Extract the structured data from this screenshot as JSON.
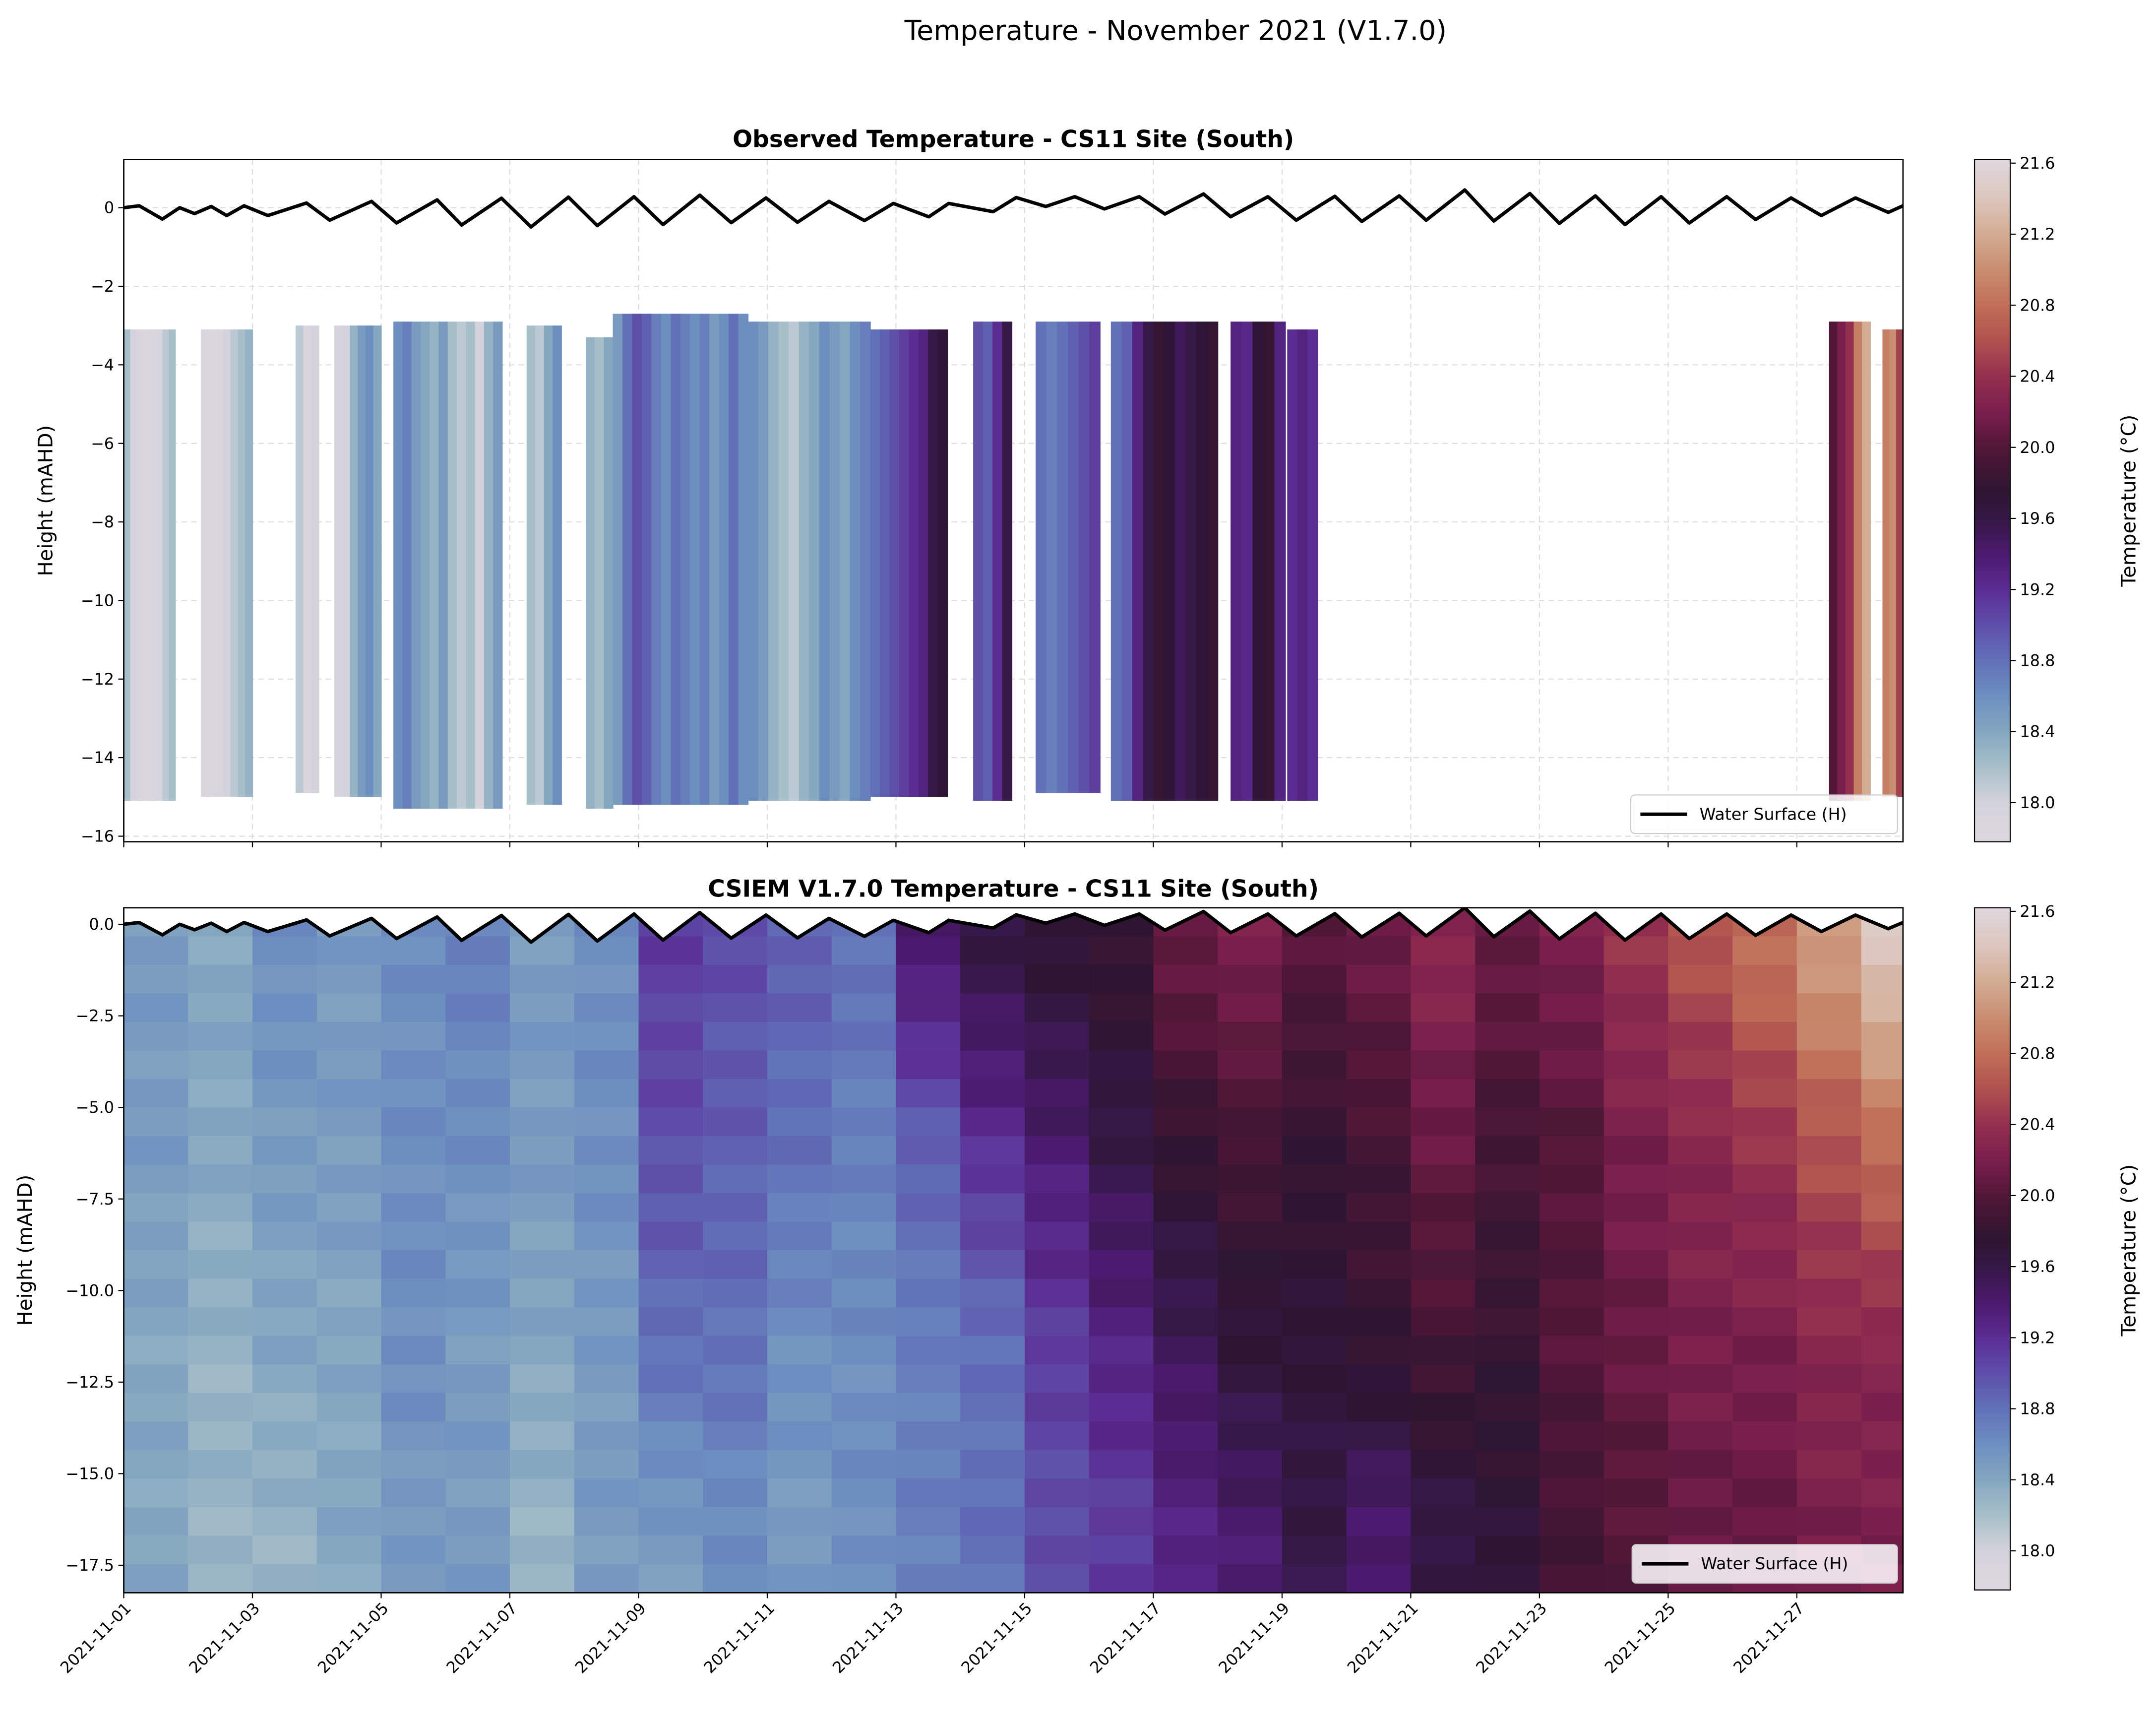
{
  "figure_title": "Temperature - November 2021 (V1.7.0)",
  "chart_data": [
    {
      "type": "heatmap",
      "id": "observed",
      "title": "Observed Temperature - CS11 Site (South)",
      "xlabel": "",
      "ylabel": "Height (mAHD)",
      "xlim_days_from_start": [
        0,
        27.65
      ],
      "ylim": [
        -16.14,
        1.23
      ],
      "yticks": [
        0,
        -2,
        -4,
        -6,
        -8,
        -10,
        -12,
        -14,
        -16
      ],
      "ytick_labels": [
        "0",
        "−2",
        "−4",
        "−6",
        "−8",
        "−10",
        "−12",
        "−14",
        "−16"
      ],
      "grid": true,
      "legend": {
        "label": "Water Surface (H)",
        "placement": "lower-right"
      },
      "segments_note": "start_day, end_day, top_height, bottom_height, temperatures across the segment",
      "segments": [
        [
          0,
          0.8,
          -3.1,
          -15.1,
          [
            18.2,
            18.0,
            17.9,
            17.85,
            17.9,
            17.95,
            18.1,
            18.2
          ]
        ],
        [
          1.2,
          2.0,
          -3.1,
          -15.0,
          [
            17.9,
            17.85,
            17.9,
            18.0,
            18.1,
            18.2,
            18.3
          ]
        ],
        [
          2.67,
          3.03,
          -3.0,
          -14.9,
          [
            18.1,
            17.9,
            18.0
          ]
        ],
        [
          3.27,
          4.0,
          -3.0,
          -15.0,
          [
            17.95,
            18.0,
            18.3,
            18.5,
            18.6,
            18.4
          ]
        ],
        [
          4.19,
          5.88,
          -2.9,
          -15.3,
          [
            18.6,
            18.7,
            18.5,
            18.4,
            18.3,
            18.5,
            18.2,
            18.1,
            18.2,
            18.0,
            18.3,
            18.5
          ]
        ],
        [
          6.26,
          6.8,
          -3.0,
          -15.2,
          [
            18.2,
            18.1,
            18.4,
            18.6
          ]
        ],
        [
          7.18,
          7.6,
          -3.3,
          -15.3,
          [
            18.3,
            18.2,
            18.4
          ]
        ],
        [
          7.6,
          9.7,
          -2.7,
          -15.2,
          [
            18.5,
            18.8,
            19.0,
            18.9,
            18.7,
            18.6,
            18.8,
            18.7,
            18.6,
            18.7,
            18.5,
            18.6,
            18.8,
            18.6
          ]
        ],
        [
          9.7,
          11.6,
          -2.9,
          -15.1,
          [
            18.6,
            18.5,
            18.3,
            18.2,
            18.1,
            18.3,
            18.4,
            18.6,
            18.5,
            18.4,
            18.6,
            18.7
          ]
        ],
        [
          11.6,
          12.8,
          -3.1,
          -15.0,
          [
            18.8,
            18.9,
            19.0,
            19.1,
            19.2,
            19.3,
            19.6,
            19.7
          ]
        ],
        [
          13.2,
          13.8,
          -2.9,
          -15.1,
          [
            19.0,
            18.9,
            19.2,
            19.6
          ]
        ],
        [
          14.17,
          15.17,
          -2.9,
          -14.9,
          [
            18.8,
            18.7,
            18.8,
            18.9,
            19.0,
            19.1
          ]
        ],
        [
          15.34,
          17.0,
          -2.9,
          -15.1,
          [
            18.8,
            18.9,
            19.3,
            19.6,
            19.8,
            19.7,
            19.5,
            19.6,
            19.7,
            19.8
          ]
        ],
        [
          17.2,
          18.05,
          -2.9,
          -15.1,
          [
            19.3,
            19.25,
            19.7,
            19.8,
            19.3
          ]
        ],
        [
          18.08,
          18.55,
          -3.1,
          -15.1,
          [
            19.2,
            19.3,
            19.2
          ]
        ],
        [
          26.5,
          27.14,
          -2.9,
          -15.1,
          [
            20.0,
            20.2,
            20.4,
            20.9,
            21.2
          ]
        ],
        [
          27.33,
          27.65,
          -3.1,
          -15.0,
          [
            20.9,
            21.0,
            20.5
          ]
        ]
      ]
    },
    {
      "type": "heatmap",
      "id": "model",
      "title": "CSIEM V1.7.0 Temperature - CS11 Site (South)",
      "xlabel": "",
      "ylabel": "Height (mAHD)",
      "xlim_days_from_start": [
        0,
        27.65
      ],
      "ylim": [
        -18.25,
        0.45
      ],
      "yticks": [
        0,
        -2.5,
        -5,
        -7.5,
        -10,
        -12.5,
        -15,
        -17.5
      ],
      "ytick_labels": [
        "0.0",
        "−2.5",
        "−5.0",
        "−7.5",
        "−10.0",
        "−12.5",
        "−15.0",
        "−17.5"
      ],
      "grid": true,
      "legend": {
        "label": "Water Surface (H)",
        "placement": "lower-right"
      },
      "band_heights": [
        -1,
        -6,
        -11.5,
        -16.5
      ],
      "daily_profiles": [
        [
          18.5,
          18.5,
          18.4,
          18.4
        ],
        [
          18.4,
          18.4,
          18.3,
          18.3
        ],
        [
          18.6,
          18.5,
          18.4,
          18.3
        ],
        [
          18.5,
          18.5,
          18.4,
          18.4
        ],
        [
          18.6,
          18.6,
          18.6,
          18.5
        ],
        [
          18.7,
          18.6,
          18.5,
          18.5
        ],
        [
          18.5,
          18.5,
          18.4,
          18.3
        ],
        [
          18.6,
          18.6,
          18.5,
          18.5
        ],
        [
          19.1,
          19.0,
          18.8,
          18.5
        ],
        [
          19.0,
          18.9,
          18.8,
          18.6
        ],
        [
          18.9,
          18.8,
          18.6,
          18.5
        ],
        [
          18.8,
          18.7,
          18.6,
          18.6
        ],
        [
          19.4,
          18.9,
          18.7,
          18.7
        ],
        [
          19.6,
          19.2,
          18.8,
          18.8
        ],
        [
          19.7,
          19.4,
          19.1,
          19.0
        ],
        [
          19.8,
          19.6,
          19.3,
          19.1
        ],
        [
          20.1,
          19.8,
          19.5,
          19.3
        ],
        [
          20.2,
          19.9,
          19.7,
          19.4
        ],
        [
          20.0,
          19.8,
          19.7,
          19.6
        ],
        [
          20.1,
          19.9,
          19.8,
          19.4
        ],
        [
          20.3,
          20.1,
          19.9,
          19.6
        ],
        [
          20.1,
          19.9,
          19.8,
          19.7
        ],
        [
          20.2,
          20.0,
          20.0,
          19.9
        ],
        [
          20.4,
          20.2,
          20.1,
          20.0
        ],
        [
          20.6,
          20.3,
          20.2,
          20.1
        ],
        [
          20.8,
          20.4,
          20.2,
          20.1
        ],
        [
          21.1,
          20.6,
          20.3,
          20.2
        ],
        [
          21.4,
          20.8,
          20.3,
          20.2
        ]
      ]
    }
  ],
  "xticks": {
    "days_from_start": [
      0,
      2,
      4,
      6,
      8,
      10,
      12,
      14,
      16,
      18,
      20,
      22,
      24,
      26
    ],
    "labels": [
      "2021-11-01",
      "2021-11-03",
      "2021-11-05",
      "2021-11-07",
      "2021-11-09",
      "2021-11-11",
      "2021-11-13",
      "2021-11-15",
      "2021-11-17",
      "2021-11-19",
      "2021-11-21",
      "2021-11-23",
      "2021-11-25",
      "2021-11-27"
    ]
  },
  "water_surface": {
    "label": "Water Surface (H)",
    "points_day_value": [
      [
        0,
        0.0
      ],
      [
        0.24,
        0.05
      ],
      [
        0.6,
        -0.29
      ],
      [
        0.87,
        0.0
      ],
      [
        1.1,
        -0.15
      ],
      [
        1.36,
        0.03
      ],
      [
        1.6,
        -0.2
      ],
      [
        1.87,
        0.05
      ],
      [
        2.24,
        -0.2
      ],
      [
        2.84,
        0.12
      ],
      [
        3.2,
        -0.32
      ],
      [
        3.85,
        0.16
      ],
      [
        4.24,
        -0.39
      ],
      [
        4.87,
        0.2
      ],
      [
        5.25,
        -0.44
      ],
      [
        5.87,
        0.24
      ],
      [
        6.33,
        -0.49
      ],
      [
        6.91,
        0.27
      ],
      [
        7.36,
        -0.46
      ],
      [
        7.93,
        0.28
      ],
      [
        8.38,
        -0.43
      ],
      [
        8.95,
        0.32
      ],
      [
        9.44,
        -0.38
      ],
      [
        9.98,
        0.25
      ],
      [
        10.47,
        -0.37
      ],
      [
        10.96,
        0.16
      ],
      [
        11.51,
        -0.33
      ],
      [
        11.96,
        0.11
      ],
      [
        12.51,
        -0.23
      ],
      [
        12.82,
        0.11
      ],
      [
        13.51,
        -0.1
      ],
      [
        13.87,
        0.26
      ],
      [
        14.33,
        0.03
      ],
      [
        14.78,
        0.28
      ],
      [
        15.24,
        -0.03
      ],
      [
        15.78,
        0.28
      ],
      [
        16.18,
        -0.16
      ],
      [
        16.78,
        0.35
      ],
      [
        17.2,
        -0.23
      ],
      [
        17.78,
        0.28
      ],
      [
        18.22,
        -0.32
      ],
      [
        18.82,
        0.29
      ],
      [
        19.24,
        -0.35
      ],
      [
        19.82,
        0.3
      ],
      [
        20.24,
        -0.32
      ],
      [
        20.84,
        0.45
      ],
      [
        21.29,
        -0.34
      ],
      [
        21.85,
        0.36
      ],
      [
        22.31,
        -0.4
      ],
      [
        22.87,
        0.3
      ],
      [
        23.33,
        -0.43
      ],
      [
        23.89,
        0.28
      ],
      [
        24.33,
        -0.39
      ],
      [
        24.91,
        0.28
      ],
      [
        25.36,
        -0.3
      ],
      [
        25.91,
        0.25
      ],
      [
        26.38,
        -0.2
      ],
      [
        26.91,
        0.25
      ],
      [
        27.42,
        -0.12
      ],
      [
        27.65,
        0.05
      ]
    ]
  },
  "colorbar": {
    "label": "Temperature (°C)",
    "range": [
      17.78,
      21.62
    ],
    "ticks": [
      18.0,
      18.4,
      18.8,
      19.2,
      19.6,
      20.0,
      20.4,
      20.8,
      21.2,
      21.6
    ],
    "tick_labels": [
      "18.0",
      "18.4",
      "18.8",
      "19.2",
      "19.6",
      "20.0",
      "20.4",
      "20.8",
      "21.2",
      "21.6"
    ],
    "colormap": [
      [
        17.78,
        "#ddd8e0"
      ],
      [
        18.0,
        "#d4d3db"
      ],
      [
        18.2,
        "#a7bfc9"
      ],
      [
        18.4,
        "#84a7c0"
      ],
      [
        18.6,
        "#6d8fc0"
      ],
      [
        18.8,
        "#6171b8"
      ],
      [
        19.0,
        "#5e4fa9"
      ],
      [
        19.2,
        "#5b2d92"
      ],
      [
        19.4,
        "#4b1a6e"
      ],
      [
        19.6,
        "#341845"
      ],
      [
        19.75,
        "#2d1531"
      ],
      [
        20.0,
        "#521737"
      ],
      [
        20.2,
        "#7a1f4d"
      ],
      [
        20.4,
        "#94304f"
      ],
      [
        20.6,
        "#b0524f"
      ],
      [
        20.8,
        "#c06f58"
      ],
      [
        21.0,
        "#c98d70"
      ],
      [
        21.2,
        "#d2ac93"
      ],
      [
        21.4,
        "#dcc6bd"
      ],
      [
        21.62,
        "#e0d8de"
      ]
    ]
  }
}
